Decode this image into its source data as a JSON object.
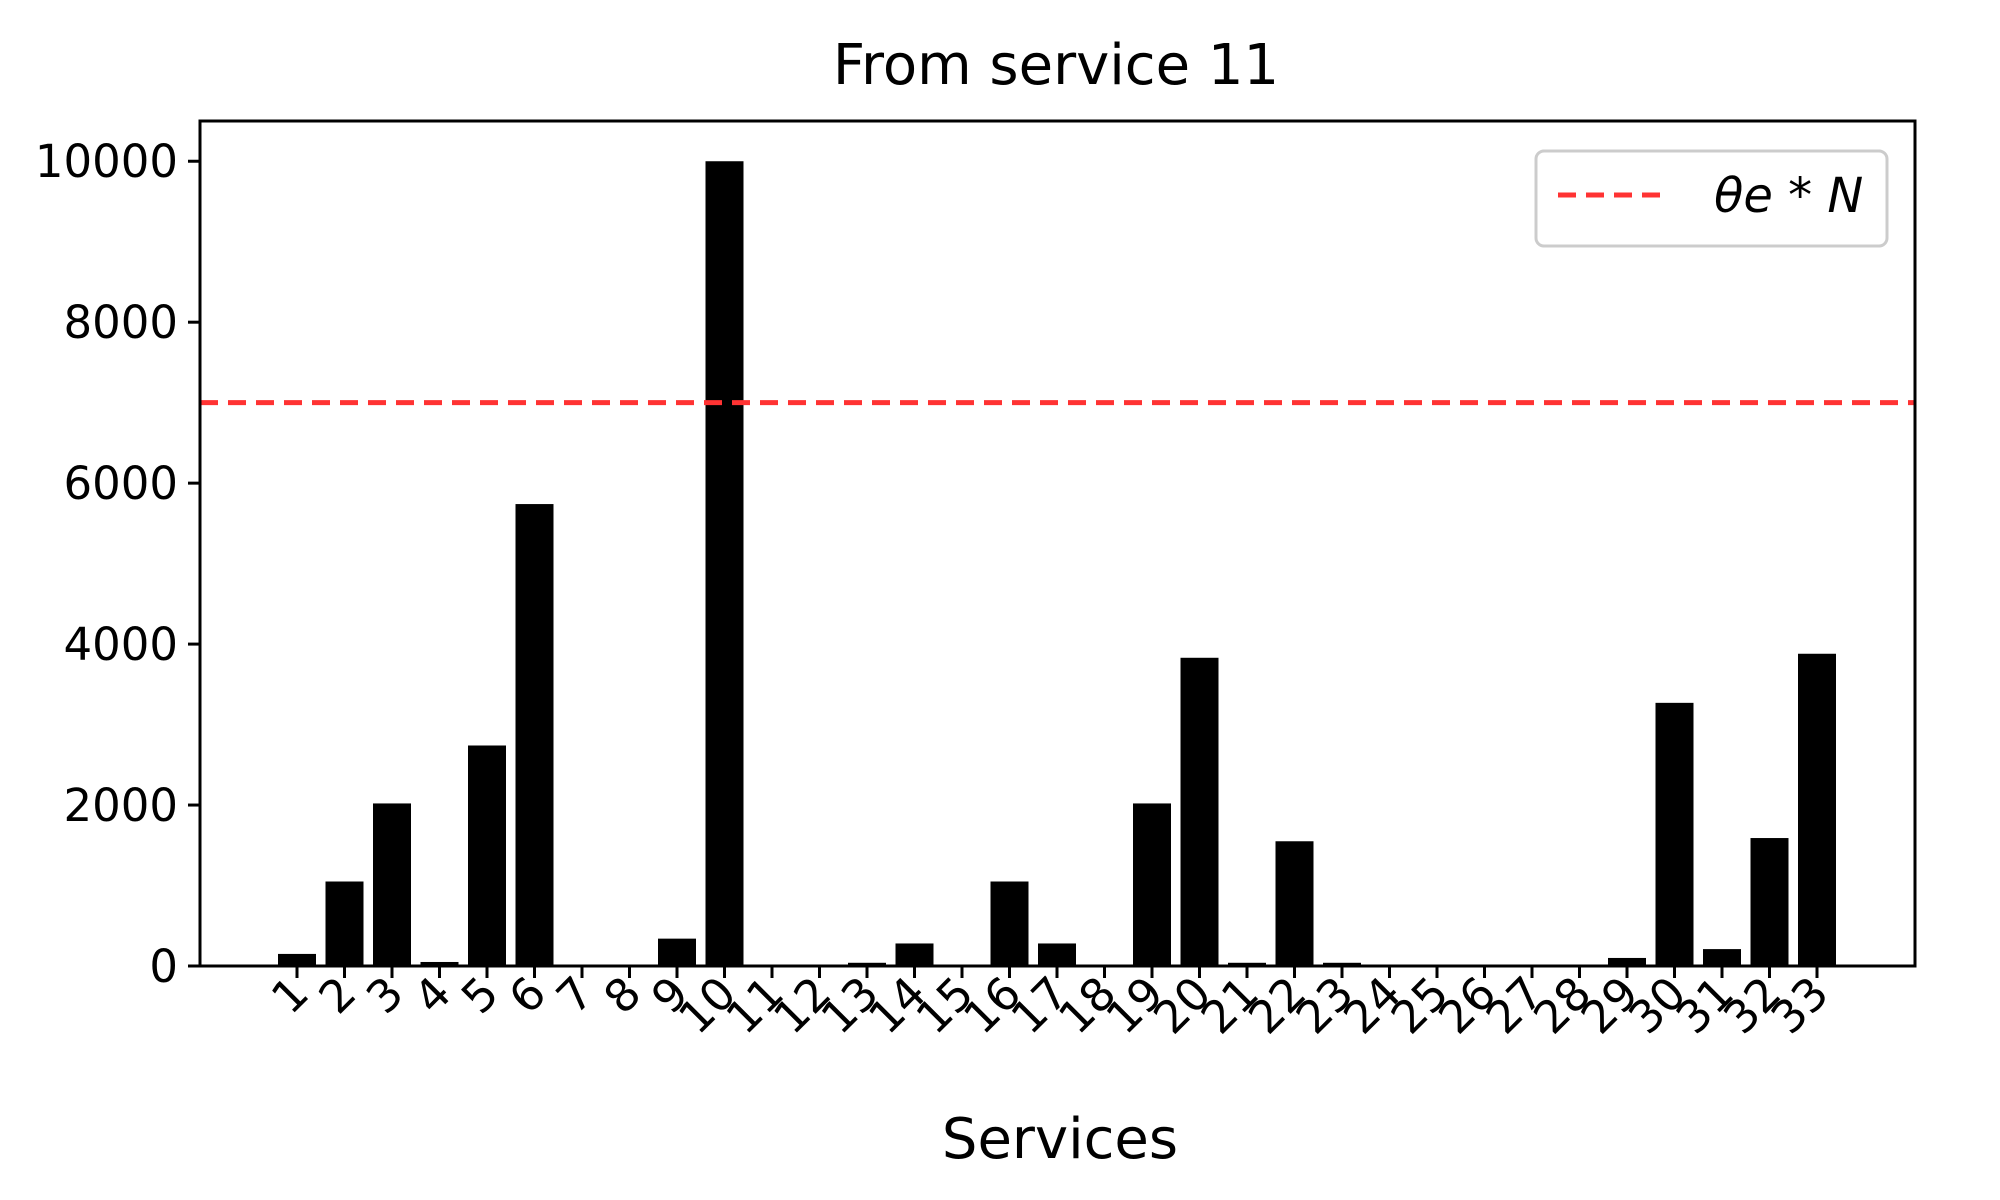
{
  "chart_data": {
    "type": "bar",
    "title": "From service 11",
    "xlabel": "Services",
    "ylabel": "",
    "categories": [
      "1",
      "2",
      "3",
      "4",
      "5",
      "6",
      "7",
      "8",
      "9",
      "10",
      "11",
      "12",
      "13",
      "14",
      "15",
      "16",
      "17",
      "18",
      "19",
      "20",
      "21",
      "22",
      "23",
      "24",
      "25",
      "26",
      "27",
      "28",
      "29",
      "30",
      "31",
      "32",
      "33"
    ],
    "values": [
      150,
      1050,
      2020,
      50,
      2740,
      5740,
      0,
      0,
      340,
      10000,
      0,
      0,
      40,
      280,
      0,
      1050,
      280,
      0,
      2020,
      3830,
      40,
      1550,
      40,
      0,
      0,
      0,
      0,
      0,
      100,
      3270,
      210,
      1590,
      3880
    ],
    "ylim": [
      0,
      10500
    ],
    "yticks": [
      "0",
      "2000",
      "4000",
      "6000",
      "8000",
      "10000"
    ],
    "bar_color": "#000000",
    "threshold": {
      "value": 7000,
      "color": "#ff3333",
      "style": "dashed",
      "legend_label": "θe * N"
    },
    "legend_position": "top-right",
    "grid": false
  }
}
